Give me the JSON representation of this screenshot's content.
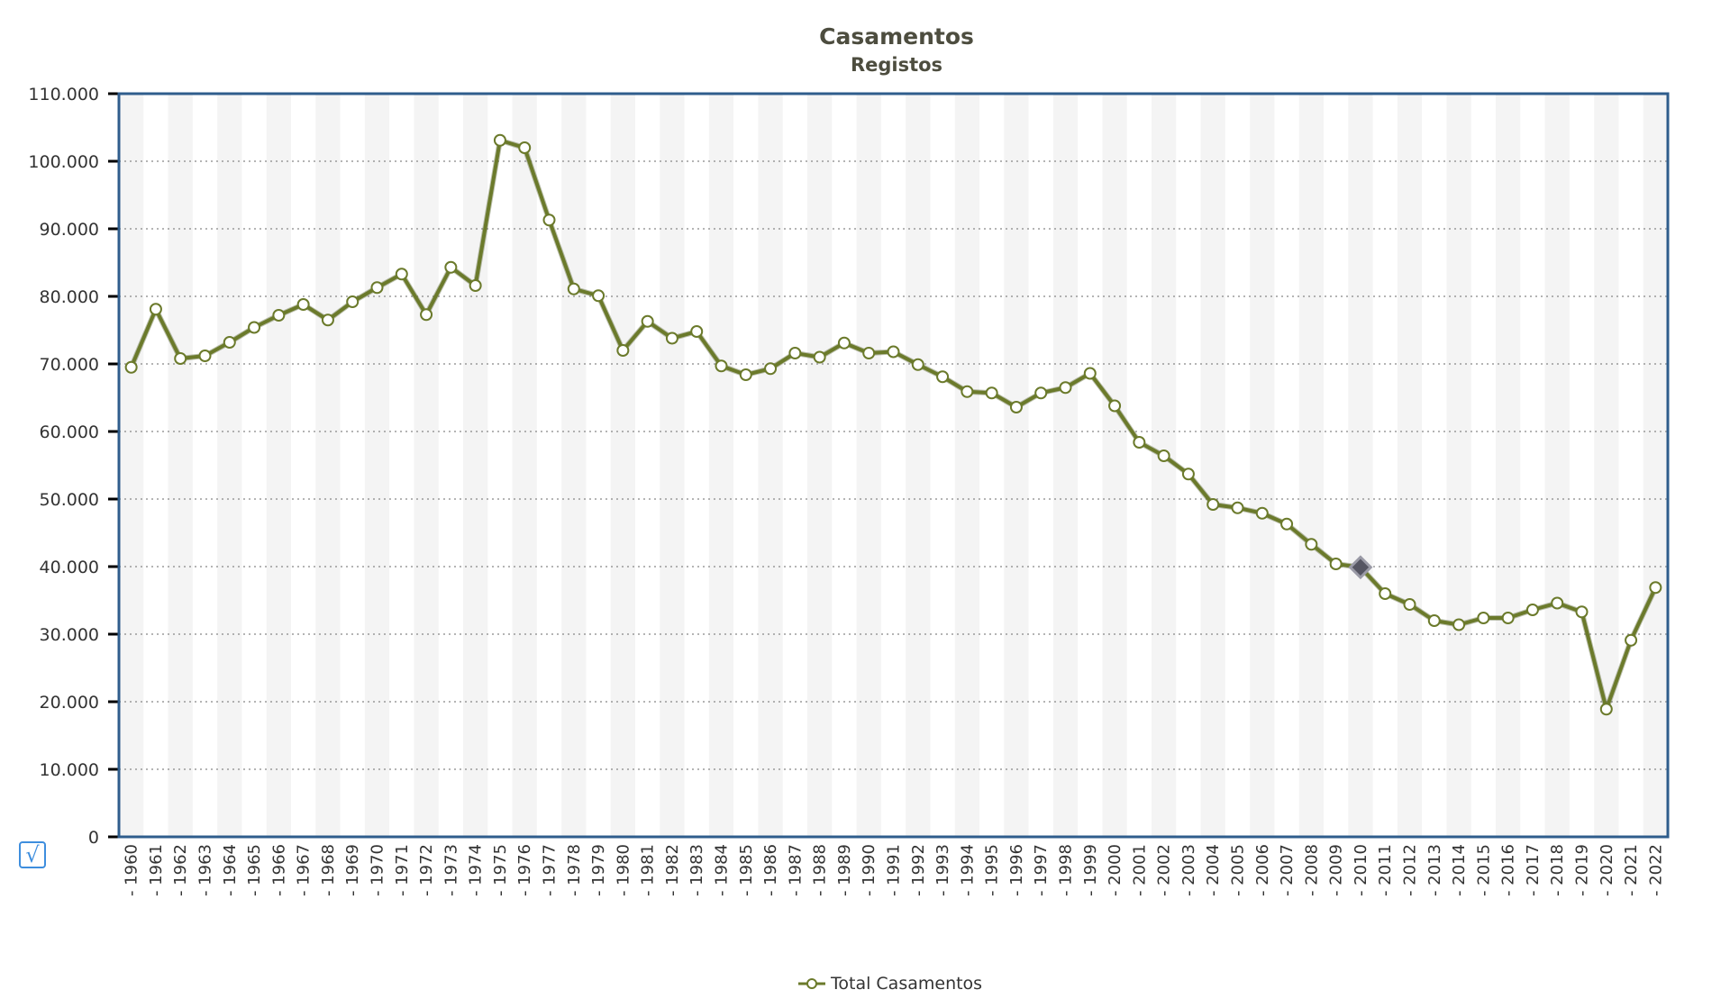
{
  "chart_data": {
    "type": "line",
    "title": "Casamentos",
    "subtitle": "Registos",
    "xlabel": "",
    "ylabel": "",
    "ylim": [
      0,
      110000
    ],
    "yticks": [
      "0",
      "10.000",
      "20.000",
      "30.000",
      "40.000",
      "50.000",
      "60.000",
      "70.000",
      "80.000",
      "90.000",
      "100.000",
      "110.000"
    ],
    "grid": true,
    "legend_position": "bottom-center",
    "categories": [
      "1960",
      "1961",
      "1962",
      "1963",
      "1964",
      "1965",
      "1966",
      "1967",
      "1968",
      "1969",
      "1970",
      "1971",
      "1972",
      "1973",
      "1974",
      "1975",
      "1976",
      "1977",
      "1978",
      "1979",
      "1980",
      "1981",
      "1982",
      "1983",
      "1984",
      "1985",
      "1986",
      "1987",
      "1988",
      "1989",
      "1990",
      "1991",
      "1992",
      "1993",
      "1994",
      "1995",
      "1996",
      "1997",
      "1998",
      "1999",
      "2000",
      "2001",
      "2002",
      "2003",
      "2004",
      "2005",
      "2006",
      "2007",
      "2008",
      "2009",
      "2010",
      "2011",
      "2012",
      "2013",
      "2014",
      "2015",
      "2016",
      "2017",
      "2018",
      "2019",
      "2020",
      "2021",
      "2022"
    ],
    "series": [
      {
        "name": "Total Casamentos",
        "color": "#6b7a2b",
        "values": [
          69500,
          78100,
          70800,
          71200,
          73200,
          75400,
          77200,
          78800,
          76500,
          79200,
          81300,
          83300,
          77300,
          84300,
          81600,
          103100,
          102000,
          91300,
          81100,
          80100,
          72000,
          76300,
          73800,
          74800,
          69700,
          68400,
          69300,
          71600,
          71000,
          73100,
          71600,
          71800,
          69900,
          68100,
          65900,
          65700,
          63600,
          65700,
          66500,
          68600,
          63800,
          58400,
          56400,
          53700,
          49200,
          48700,
          47900,
          46300,
          43300,
          40400,
          39900,
          36000,
          34400,
          32000,
          31400,
          32400,
          32400,
          33600,
          34600,
          33300,
          18900,
          29100,
          36900
        ]
      }
    ],
    "highlighted_category": "2010"
  },
  "legend": {
    "label": "Total Casamentos"
  },
  "controls": {
    "check_glyph": "√"
  }
}
